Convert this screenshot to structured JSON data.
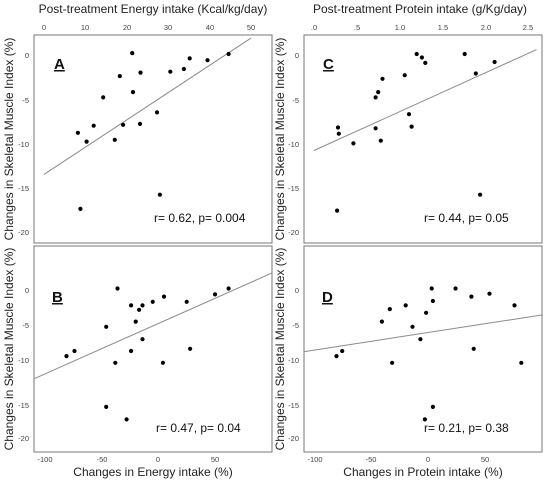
{
  "chart_data": [
    {
      "type": "scatter",
      "panel": "A",
      "xlabel": "Post-treatment Energy intake (Kcal/kg/day)",
      "ylabel": "Changes in Skeletal Muscle Index (%)",
      "x_axis_position": "top",
      "xlim": [
        0,
        50
      ],
      "ylim": [
        -21,
        3
      ],
      "xticks": [
        0,
        10,
        20,
        30,
        40,
        50
      ],
      "yticks": [
        0,
        -5,
        -10,
        -15,
        -20
      ],
      "ytick_labels": [
        "0",
        "-5",
        "-10",
        "-15",
        "-20"
      ],
      "points": [
        {
          "x": 21.3,
          "y": 0.1
        },
        {
          "x": 44.6,
          "y": 0.0
        },
        {
          "x": 35.2,
          "y": -0.5
        },
        {
          "x": 39.5,
          "y": -0.7
        },
        {
          "x": 33.8,
          "y": -1.7
        },
        {
          "x": 30.5,
          "y": -2.0
        },
        {
          "x": 23.3,
          "y": -2.1
        },
        {
          "x": 18.3,
          "y": -2.5
        },
        {
          "x": 21.5,
          "y": -4.3
        },
        {
          "x": 14.3,
          "y": -4.9
        },
        {
          "x": 27.3,
          "y": -6.6
        },
        {
          "x": 23.2,
          "y": -7.9
        },
        {
          "x": 19.1,
          "y": -8.0
        },
        {
          "x": 12.0,
          "y": -8.1
        },
        {
          "x": 8.2,
          "y": -8.9
        },
        {
          "x": 17.1,
          "y": -9.7
        },
        {
          "x": 10.3,
          "y": -9.9
        },
        {
          "x": 28.0,
          "y": -15.9
        },
        {
          "x": 8.8,
          "y": -17.5
        }
      ],
      "fit_line": {
        "x": [
          0,
          50
        ],
        "y": [
          -13.6,
          1.8
        ]
      },
      "annotation": "r= 0.62, p= 0.004",
      "grid": false
    },
    {
      "type": "scatter",
      "panel": "C",
      "xlabel": "Post-treatment Protein intake (g/Kg/day)",
      "ylabel": "Changes in Skeletal Muscle Index (%)",
      "x_axis_position": "top",
      "xlim": [
        0,
        2.6
      ],
      "ylim": [
        -21,
        3
      ],
      "xticks": [
        0,
        0.5,
        1.0,
        1.5,
        2.0,
        2.5
      ],
      "xtick_labels": [
        ".0",
        ".5",
        "1.0",
        "1.5",
        "2.0",
        "2.5"
      ],
      "yticks": [
        0,
        -5,
        -10,
        -15,
        -20
      ],
      "ytick_labels": [
        "0",
        "-5",
        "-10",
        "-15",
        "-20"
      ],
      "points": [
        {
          "x": 1.2,
          "y": 0.0
        },
        {
          "x": 1.76,
          "y": 0.0
        },
        {
          "x": 1.26,
          "y": -0.4
        },
        {
          "x": 1.3,
          "y": -1.0
        },
        {
          "x": 2.11,
          "y": -0.9
        },
        {
          "x": 1.89,
          "y": -2.2
        },
        {
          "x": 1.06,
          "y": -2.4
        },
        {
          "x": 0.8,
          "y": -2.8
        },
        {
          "x": 0.75,
          "y": -4.3
        },
        {
          "x": 0.72,
          "y": -4.9
        },
        {
          "x": 1.11,
          "y": -6.8
        },
        {
          "x": 1.14,
          "y": -8.2
        },
        {
          "x": 0.28,
          "y": -8.3
        },
        {
          "x": 0.72,
          "y": -8.4
        },
        {
          "x": 0.29,
          "y": -9.0
        },
        {
          "x": 0.78,
          "y": -9.8
        },
        {
          "x": 0.46,
          "y": -10.1
        },
        {
          "x": 1.94,
          "y": -15.9
        },
        {
          "x": 0.27,
          "y": -17.7
        }
      ],
      "fit_line": {
        "x": [
          0,
          2.6
        ],
        "y": [
          -10.9,
          0.5
        ]
      },
      "annotation": "r= 0.44, p= 0.05",
      "grid": false
    },
    {
      "type": "scatter",
      "panel": "B",
      "xlabel": "Changes in Energy intake (%)",
      "ylabel": "Changes in Skeletal Muscle Index (%)",
      "x_axis_position": "bottom",
      "xlim": [
        -110,
        100
      ],
      "ylim": [
        -21,
        3
      ],
      "xticks": [
        -100,
        -50,
        0,
        50
      ],
      "yticks": [
        0,
        -5,
        -10,
        -15,
        -20
      ],
      "ytick_labels": [
        "0",
        "-5",
        "-10",
        "-15",
        "-20"
      ],
      "points": [
        {
          "x": -36,
          "y": 0.2
        },
        {
          "x": 62,
          "y": 0.2
        },
        {
          "x": 50,
          "y": -0.6
        },
        {
          "x": 5,
          "y": -0.9
        },
        {
          "x": -5,
          "y": -1.6
        },
        {
          "x": 25,
          "y": -1.6
        },
        {
          "x": -24,
          "y": -2.1
        },
        {
          "x": -14,
          "y": -2.1
        },
        {
          "x": -17,
          "y": -2.7
        },
        {
          "x": -20,
          "y": -4.3
        },
        {
          "x": -46,
          "y": -5.0
        },
        {
          "x": -14,
          "y": -6.7
        },
        {
          "x": -74,
          "y": -8.3
        },
        {
          "x": -24,
          "y": -8.3
        },
        {
          "x": 28,
          "y": -8.0
        },
        {
          "x": -81,
          "y": -9.0
        },
        {
          "x": -38,
          "y": -9.9
        },
        {
          "x": 4,
          "y": -9.9
        },
        {
          "x": -46,
          "y": -15.9
        },
        {
          "x": -28,
          "y": -17.6
        }
      ],
      "fit_line": {
        "x": [
          -110,
          100
        ],
        "y": [
          -12.1,
          2.3
        ]
      },
      "annotation": "r= 0.47, p= 0.04",
      "grid": false
    },
    {
      "type": "scatter",
      "panel": "D",
      "xlabel": "Changes in Protein intake (%)",
      "ylabel": "Changes in Skeletal Muscle Index (%)",
      "x_axis_position": "bottom",
      "xlim": [
        -110,
        100
      ],
      "ylim": [
        -21,
        3
      ],
      "xticks": [
        -100,
        -50,
        0,
        50
      ],
      "yticks": [
        0,
        -5,
        -10,
        -15,
        -20
      ],
      "ytick_labels": [
        "0",
        "-5",
        "-10",
        "-15",
        "-20"
      ],
      "points": [
        {
          "x": 3,
          "y": 0.2
        },
        {
          "x": 24,
          "y": 0.2
        },
        {
          "x": 54,
          "y": -0.5
        },
        {
          "x": 38,
          "y": -0.9
        },
        {
          "x": 4,
          "y": -1.5
        },
        {
          "x": 76,
          "y": -2.1
        },
        {
          "x": -20,
          "y": -2.1
        },
        {
          "x": -34,
          "y": -2.6
        },
        {
          "x": -2,
          "y": -3.1
        },
        {
          "x": -41,
          "y": -4.3
        },
        {
          "x": -14,
          "y": -5.0
        },
        {
          "x": -7,
          "y": -6.7
        },
        {
          "x": -76,
          "y": -8.3
        },
        {
          "x": 40,
          "y": -8.0
        },
        {
          "x": -81,
          "y": -9.0
        },
        {
          "x": -32,
          "y": -9.9
        },
        {
          "x": 82,
          "y": -9.9
        },
        {
          "x": 4,
          "y": -15.9
        },
        {
          "x": -3,
          "y": -17.6
        }
      ],
      "fit_line": {
        "x": [
          -110,
          100
        ],
        "y": [
          -8.4,
          -3.4
        ]
      },
      "annotation": "r= 0.21, p= 0.38",
      "grid": false
    }
  ]
}
